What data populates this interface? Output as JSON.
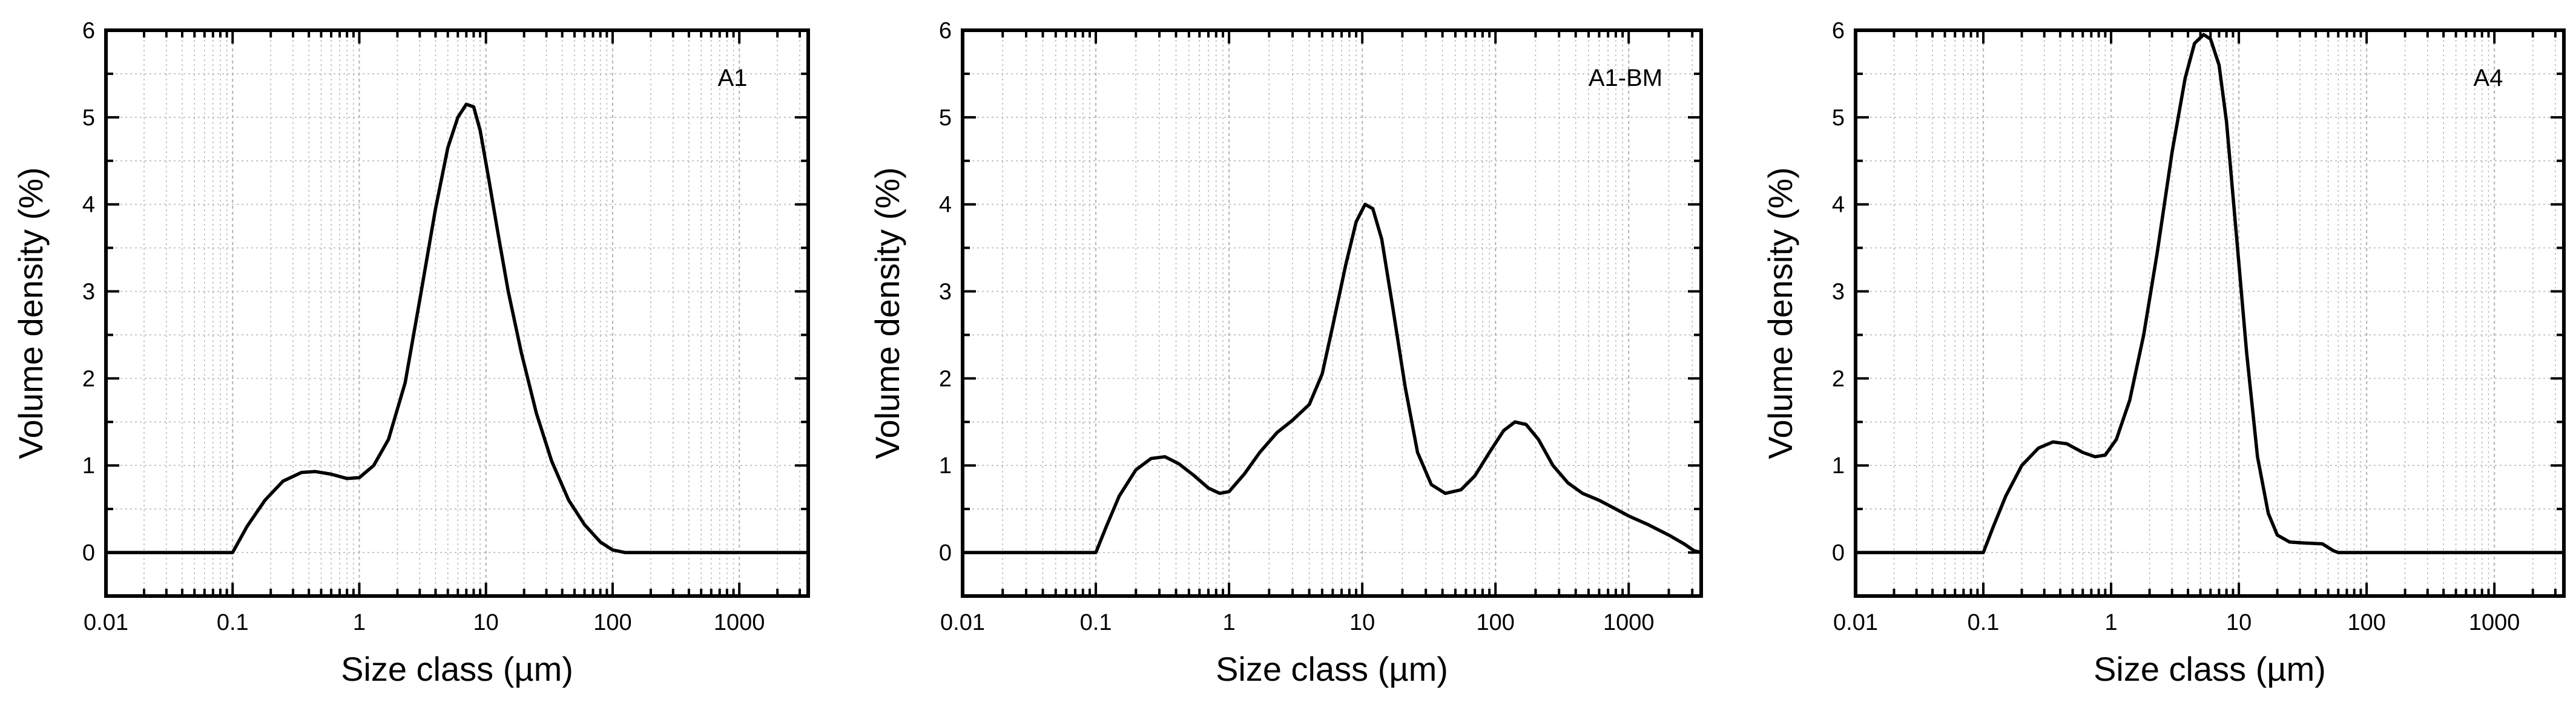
{
  "figure": {
    "background": "#ffffff",
    "line_color": "#000000",
    "grid_color": "#b8b8b8"
  },
  "chart_data": [
    {
      "type": "line",
      "title": "A1",
      "xlabel": "Size class (µm)",
      "ylabel": "Volume density (%)",
      "xscale": "log",
      "xlim": [
        0.01,
        3500
      ],
      "ylim": [
        -0.5,
        6
      ],
      "xticks": [
        0.01,
        0.1,
        1,
        10,
        100,
        1000
      ],
      "xtick_labels": [
        "0.01",
        "0.1",
        "1",
        "10",
        "100",
        "1000"
      ],
      "yticks": [
        0,
        1,
        2,
        3,
        4,
        5,
        6
      ],
      "ytick_labels": [
        "0",
        "1",
        "2",
        "3",
        "4",
        "5",
        "6"
      ],
      "grid": true,
      "label_position": "top-right",
      "series": [
        {
          "name": "A1",
          "x": [
            0.01,
            0.1,
            0.13,
            0.18,
            0.25,
            0.35,
            0.45,
            0.6,
            0.8,
            1.0,
            1.3,
            1.7,
            2.3,
            3.0,
            4.0,
            5.0,
            6.0,
            7.0,
            8.0,
            9.0,
            10.5,
            12.5,
            15,
            19,
            25,
            33,
            45,
            60,
            80,
            100,
            125,
            200,
            3500
          ],
          "y": [
            0,
            0,
            0.3,
            0.6,
            0.82,
            0.92,
            0.93,
            0.9,
            0.85,
            0.86,
            1.0,
            1.3,
            1.95,
            2.9,
            3.95,
            4.65,
            5.0,
            5.15,
            5.12,
            4.85,
            4.3,
            3.65,
            3.0,
            2.3,
            1.6,
            1.05,
            0.6,
            0.32,
            0.12,
            0.03,
            0,
            0,
            0
          ]
        }
      ]
    },
    {
      "type": "line",
      "title": "A1-BM",
      "xlabel": "Size class (µm)",
      "ylabel": "Volume density (%)",
      "xscale": "log",
      "xlim": [
        0.01,
        3500
      ],
      "ylim": [
        -0.5,
        6
      ],
      "xticks": [
        0.01,
        0.1,
        1,
        10,
        100,
        1000
      ],
      "xtick_labels": [
        "0.01",
        "0.1",
        "1",
        "10",
        "100",
        "1000"
      ],
      "yticks": [
        0,
        1,
        2,
        3,
        4,
        5,
        6
      ],
      "ytick_labels": [
        "0",
        "1",
        "2",
        "3",
        "4",
        "5",
        "6"
      ],
      "grid": true,
      "label_position": "top-right",
      "series": [
        {
          "name": "A1-BM",
          "x": [
            0.01,
            0.1,
            0.12,
            0.15,
            0.2,
            0.26,
            0.33,
            0.42,
            0.55,
            0.7,
            0.85,
            1.0,
            1.3,
            1.7,
            2.3,
            3.0,
            4.0,
            5.0,
            6.0,
            7.5,
            9.0,
            10.5,
            12.0,
            14.0,
            17,
            21,
            26,
            33,
            42,
            55,
            70,
            90,
            115,
            140,
            170,
            210,
            270,
            350,
            450,
            600,
            800,
            1000,
            1400,
            2000,
            2600,
            3100,
            3500
          ],
          "y": [
            0,
            0,
            0.3,
            0.65,
            0.95,
            1.08,
            1.1,
            1.02,
            0.88,
            0.74,
            0.68,
            0.7,
            0.9,
            1.15,
            1.38,
            1.52,
            1.7,
            2.05,
            2.6,
            3.3,
            3.8,
            4.0,
            3.95,
            3.6,
            2.8,
            1.9,
            1.15,
            0.78,
            0.68,
            0.72,
            0.88,
            1.15,
            1.4,
            1.5,
            1.47,
            1.3,
            1.0,
            0.8,
            0.68,
            0.6,
            0.5,
            0.42,
            0.32,
            0.2,
            0.1,
            0.02,
            0
          ]
        }
      ]
    },
    {
      "type": "line",
      "title": "A4",
      "xlabel": "Size class (µm)",
      "ylabel": "Volume density (%)",
      "xscale": "log",
      "xlim": [
        0.01,
        3500
      ],
      "ylim": [
        -0.5,
        6
      ],
      "xticks": [
        0.01,
        0.1,
        1,
        10,
        100,
        1000
      ],
      "xtick_labels": [
        "0.01",
        "0.1",
        "1",
        "10",
        "100",
        "1000"
      ],
      "yticks": [
        0,
        1,
        2,
        3,
        4,
        5,
        6
      ],
      "ytick_labels": [
        "0",
        "1",
        "2",
        "3",
        "4",
        "5",
        "6"
      ],
      "grid": true,
      "label_position": "top-right",
      "series": [
        {
          "name": "A4",
          "x": [
            0.01,
            0.1,
            0.12,
            0.15,
            0.2,
            0.27,
            0.35,
            0.45,
            0.6,
            0.75,
            0.9,
            1.1,
            1.4,
            1.8,
            2.3,
            3.0,
            3.8,
            4.5,
            5.3,
            6.0,
            7.0,
            8.0,
            9.5,
            11.5,
            14,
            17,
            20,
            25,
            32,
            45,
            55,
            60,
            100,
            3500
          ],
          "y": [
            0,
            0,
            0.3,
            0.65,
            1.0,
            1.2,
            1.27,
            1.25,
            1.15,
            1.1,
            1.12,
            1.3,
            1.75,
            2.5,
            3.45,
            4.6,
            5.45,
            5.85,
            5.95,
            5.9,
            5.6,
            4.95,
            3.7,
            2.3,
            1.1,
            0.45,
            0.2,
            0.12,
            0.11,
            0.1,
            0.02,
            0,
            0,
            0
          ]
        }
      ]
    }
  ]
}
